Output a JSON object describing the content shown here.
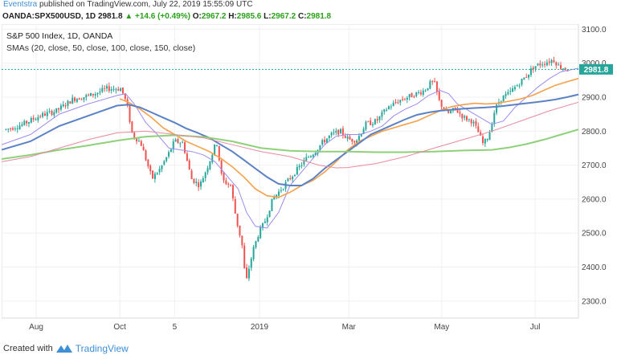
{
  "header": {
    "author": "Eventstra",
    "published_text": "published on TradingView.com, July 22, 2019 15:55:09 UTC"
  },
  "ohlc": {
    "symbol": "OANDA:SPX500USD, 1D",
    "last": "2981.8",
    "change": "+14.6 (+0.49%)",
    "o_label": "O:",
    "o": "2967.2",
    "h_label": "H:",
    "h": "2985.6",
    "l_label": "L:",
    "l": "2967.2",
    "c_label": "C:",
    "c": "2981.8"
  },
  "legend": {
    "title": "S&P 500 Index, 1D, OANDA",
    "smas": "SMAs (20, close, 50, close, 100, close, 150, close)"
  },
  "price_label": "2981.8",
  "footer": {
    "created_with": "Created with",
    "brand": "TradingView"
  },
  "colors": {
    "up": "#26a69a",
    "down": "#ef5350",
    "sma20": "#9b8cf0",
    "sma50": "#f5a04a",
    "sma100": "#5b82c4",
    "sma150": "#8fd07a",
    "price_line": "#26a69a"
  },
  "chart_data": {
    "type": "line",
    "title": "S&P 500 Index, 1D, OANDA",
    "ylim": [
      2250,
      3115
    ],
    "y_ticks": [
      2300,
      2400,
      2500,
      2600,
      2700,
      2800,
      2900,
      3000,
      3100
    ],
    "y_tick_labels": [
      "2300.0",
      "2400.0",
      "2500.0",
      "2600.0",
      "2700.0",
      "2800.0",
      "2900.0",
      "3000.0",
      "3100.0"
    ],
    "x_ticks": [
      {
        "label": "Aug",
        "pos": 0.06
      },
      {
        "label": "Oct",
        "pos": 0.205
      },
      {
        "label": "5",
        "pos": 0.3
      },
      {
        "label": "2019",
        "pos": 0.447
      },
      {
        "label": "Mar",
        "pos": 0.602
      },
      {
        "label": "May",
        "pos": 0.763
      },
      {
        "label": "Jul",
        "pos": 0.925
      }
    ],
    "last_price": 2981.8,
    "price_anchors": [
      [
        0.0,
        2805
      ],
      [
        0.03,
        2820
      ],
      [
        0.06,
        2845
      ],
      [
        0.09,
        2860
      ],
      [
        0.12,
        2895
      ],
      [
        0.15,
        2905
      ],
      [
        0.18,
        2925
      ],
      [
        0.205,
        2925
      ],
      [
        0.215,
        2880
      ],
      [
        0.225,
        2790
      ],
      [
        0.24,
        2765
      ],
      [
        0.26,
        2660
      ],
      [
        0.275,
        2690
      ],
      [
        0.29,
        2735
      ],
      [
        0.3,
        2770
      ],
      [
        0.315,
        2765
      ],
      [
        0.33,
        2660
      ],
      [
        0.345,
        2640
      ],
      [
        0.36,
        2700
      ],
      [
        0.375,
        2770
      ],
      [
        0.385,
        2655
      ],
      [
        0.4,
        2640
      ],
      [
        0.41,
        2540
      ],
      [
        0.42,
        2470
      ],
      [
        0.427,
        2350
      ],
      [
        0.433,
        2400
      ],
      [
        0.44,
        2450
      ],
      [
        0.45,
        2500
      ],
      [
        0.46,
        2530
      ],
      [
        0.475,
        2600
      ],
      [
        0.49,
        2630
      ],
      [
        0.505,
        2660
      ],
      [
        0.52,
        2690
      ],
      [
        0.535,
        2720
      ],
      [
        0.55,
        2740
      ],
      [
        0.565,
        2770
      ],
      [
        0.58,
        2790
      ],
      [
        0.595,
        2800
      ],
      [
        0.61,
        2775
      ],
      [
        0.625,
        2775
      ],
      [
        0.64,
        2820
      ],
      [
        0.66,
        2830
      ],
      [
        0.68,
        2870
      ],
      [
        0.7,
        2890
      ],
      [
        0.715,
        2900
      ],
      [
        0.73,
        2910
      ],
      [
        0.745,
        2920
      ],
      [
        0.755,
        2940
      ],
      [
        0.762,
        2945
      ],
      [
        0.772,
        2885
      ],
      [
        0.785,
        2850
      ],
      [
        0.8,
        2865
      ],
      [
        0.815,
        2840
      ],
      [
        0.83,
        2830
      ],
      [
        0.84,
        2800
      ],
      [
        0.85,
        2760
      ],
      [
        0.86,
        2790
      ],
      [
        0.87,
        2860
      ],
      [
        0.88,
        2895
      ],
      [
        0.895,
        2910
      ],
      [
        0.91,
        2935
      ],
      [
        0.925,
        2960
      ],
      [
        0.94,
        2990
      ],
      [
        0.955,
        3000
      ],
      [
        0.965,
        3005
      ],
      [
        0.975,
        3010
      ],
      [
        0.985,
        2990
      ],
      [
        1.0,
        2981.8
      ]
    ],
    "series": [
      {
        "name": "SMA 20",
        "color": "#9b8cf0",
        "width": 1.0,
        "points": [
          [
            0.0,
            2760
          ],
          [
            0.05,
            2790
          ],
          [
            0.1,
            2850
          ],
          [
            0.15,
            2880
          ],
          [
            0.2,
            2905
          ],
          [
            0.215,
            2910
          ],
          [
            0.23,
            2880
          ],
          [
            0.25,
            2825
          ],
          [
            0.27,
            2790
          ],
          [
            0.29,
            2750
          ],
          [
            0.31,
            2745
          ],
          [
            0.33,
            2740
          ],
          [
            0.35,
            2730
          ],
          [
            0.37,
            2710
          ],
          [
            0.39,
            2670
          ],
          [
            0.41,
            2630
          ],
          [
            0.425,
            2560
          ],
          [
            0.44,
            2520
          ],
          [
            0.46,
            2515
          ],
          [
            0.48,
            2560
          ],
          [
            0.5,
            2640
          ],
          [
            0.52,
            2680
          ],
          [
            0.54,
            2720
          ],
          [
            0.56,
            2760
          ],
          [
            0.58,
            2785
          ],
          [
            0.6,
            2790
          ],
          [
            0.62,
            2790
          ],
          [
            0.64,
            2800
          ],
          [
            0.66,
            2815
          ],
          [
            0.68,
            2845
          ],
          [
            0.7,
            2865
          ],
          [
            0.72,
            2880
          ],
          [
            0.74,
            2905
          ],
          [
            0.76,
            2920
          ],
          [
            0.775,
            2910
          ],
          [
            0.79,
            2880
          ],
          [
            0.81,
            2860
          ],
          [
            0.83,
            2840
          ],
          [
            0.85,
            2820
          ],
          [
            0.87,
            2830
          ],
          [
            0.89,
            2870
          ],
          [
            0.91,
            2900
          ],
          [
            0.93,
            2930
          ],
          [
            0.95,
            2955
          ],
          [
            0.97,
            2975
          ],
          [
            1.0,
            2985
          ]
        ]
      },
      {
        "name": "SMA 50",
        "color": "#f5a04a",
        "width": 1.6,
        "points": [
          [
            0.205,
            2895
          ],
          [
            0.22,
            2885
          ],
          [
            0.24,
            2865
          ],
          [
            0.26,
            2840
          ],
          [
            0.28,
            2810
          ],
          [
            0.3,
            2790
          ],
          [
            0.32,
            2770
          ],
          [
            0.34,
            2755
          ],
          [
            0.36,
            2740
          ],
          [
            0.38,
            2720
          ],
          [
            0.4,
            2695
          ],
          [
            0.42,
            2665
          ],
          [
            0.44,
            2630
          ],
          [
            0.46,
            2610
          ],
          [
            0.48,
            2605
          ],
          [
            0.5,
            2620
          ],
          [
            0.52,
            2640
          ],
          [
            0.54,
            2655
          ],
          [
            0.56,
            2680
          ],
          [
            0.58,
            2710
          ],
          [
            0.6,
            2745
          ],
          [
            0.62,
            2770
          ],
          [
            0.64,
            2785
          ],
          [
            0.66,
            2800
          ],
          [
            0.68,
            2810
          ],
          [
            0.7,
            2820
          ],
          [
            0.72,
            2830
          ],
          [
            0.74,
            2845
          ],
          [
            0.76,
            2860
          ],
          [
            0.78,
            2872
          ],
          [
            0.8,
            2878
          ],
          [
            0.82,
            2882
          ],
          [
            0.84,
            2880
          ],
          [
            0.86,
            2882
          ],
          [
            0.88,
            2888
          ],
          [
            0.9,
            2895
          ],
          [
            0.92,
            2905
          ],
          [
            0.94,
            2920
          ],
          [
            0.96,
            2935
          ],
          [
            0.98,
            2945
          ],
          [
            1.0,
            2955
          ]
        ]
      },
      {
        "name": "SMA 100",
        "color": "#5b82c4",
        "width": 2.0,
        "points": [
          [
            0.0,
            2745
          ],
          [
            0.05,
            2770
          ],
          [
            0.1,
            2815
          ],
          [
            0.15,
            2845
          ],
          [
            0.2,
            2875
          ],
          [
            0.22,
            2878
          ],
          [
            0.24,
            2870
          ],
          [
            0.26,
            2855
          ],
          [
            0.28,
            2840
          ],
          [
            0.3,
            2825
          ],
          [
            0.32,
            2808
          ],
          [
            0.34,
            2795
          ],
          [
            0.36,
            2780
          ],
          [
            0.38,
            2760
          ],
          [
            0.4,
            2740
          ],
          [
            0.42,
            2715
          ],
          [
            0.44,
            2690
          ],
          [
            0.46,
            2665
          ],
          [
            0.48,
            2645
          ],
          [
            0.5,
            2640
          ],
          [
            0.52,
            2640
          ],
          [
            0.54,
            2660
          ],
          [
            0.56,
            2690
          ],
          [
            0.58,
            2715
          ],
          [
            0.6,
            2740
          ],
          [
            0.62,
            2765
          ],
          [
            0.64,
            2790
          ],
          [
            0.66,
            2805
          ],
          [
            0.68,
            2820
          ],
          [
            0.7,
            2835
          ],
          [
            0.72,
            2848
          ],
          [
            0.74,
            2855
          ],
          [
            0.76,
            2860
          ],
          [
            0.78,
            2863
          ],
          [
            0.8,
            2866
          ],
          [
            0.82,
            2868
          ],
          [
            0.84,
            2870
          ],
          [
            0.86,
            2872
          ],
          [
            0.88,
            2876
          ],
          [
            0.9,
            2880
          ],
          [
            0.92,
            2884
          ],
          [
            0.94,
            2888
          ],
          [
            0.96,
            2893
          ],
          [
            0.98,
            2900
          ],
          [
            1.0,
            2908
          ]
        ]
      },
      {
        "name": "SMA 150",
        "color": "#8fd07a",
        "width": 2.0,
        "points": [
          [
            0.0,
            2718
          ],
          [
            0.05,
            2730
          ],
          [
            0.1,
            2745
          ],
          [
            0.15,
            2758
          ],
          [
            0.2,
            2772
          ],
          [
            0.25,
            2784
          ],
          [
            0.3,
            2788
          ],
          [
            0.35,
            2783
          ],
          [
            0.4,
            2770
          ],
          [
            0.45,
            2750
          ],
          [
            0.5,
            2742
          ],
          [
            0.55,
            2740
          ],
          [
            0.6,
            2740
          ],
          [
            0.65,
            2738
          ],
          [
            0.7,
            2738
          ],
          [
            0.75,
            2740
          ],
          [
            0.8,
            2743
          ],
          [
            0.85,
            2745
          ],
          [
            0.88,
            2752
          ],
          [
            0.91,
            2762
          ],
          [
            0.94,
            2775
          ],
          [
            0.97,
            2790
          ],
          [
            1.0,
            2805
          ]
        ]
      },
      {
        "name": "SMA pink",
        "color": "#e88aa0",
        "width": 1.0,
        "points": [
          [
            0.0,
            2710
          ],
          [
            0.05,
            2725
          ],
          [
            0.1,
            2750
          ],
          [
            0.15,
            2775
          ],
          [
            0.2,
            2795
          ],
          [
            0.25,
            2800
          ],
          [
            0.3,
            2790
          ],
          [
            0.35,
            2780
          ],
          [
            0.4,
            2760
          ],
          [
            0.45,
            2740
          ],
          [
            0.5,
            2725
          ],
          [
            0.55,
            2700
          ],
          [
            0.58,
            2692
          ],
          [
            0.6,
            2693
          ],
          [
            0.65,
            2705
          ],
          [
            0.7,
            2725
          ],
          [
            0.75,
            2750
          ],
          [
            0.8,
            2775
          ],
          [
            0.85,
            2800
          ],
          [
            0.9,
            2830
          ],
          [
            0.95,
            2860
          ],
          [
            1.0,
            2885
          ]
        ]
      }
    ]
  }
}
